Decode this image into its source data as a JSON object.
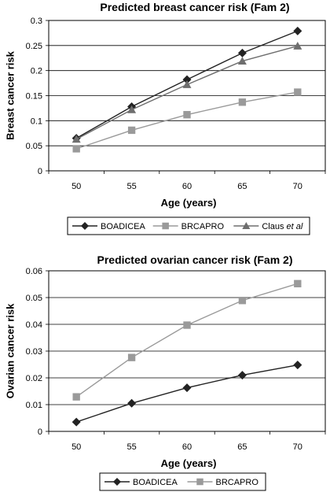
{
  "chart_data": [
    {
      "type": "line",
      "title": "Predicted breast cancer risk (Fam 2)",
      "xlabel": "Age (years)",
      "ylabel": "Breast cancer risk",
      "categories": [
        "50",
        "55",
        "60",
        "65",
        "70"
      ],
      "yticks": [
        "0",
        "0.05",
        "0.1",
        "0.15",
        "0.2",
        "0.25",
        "0.3"
      ],
      "ylim": [
        0,
        0.3
      ],
      "grid": true,
      "legend_position": "bottom",
      "series": [
        {
          "name": "BOADICEA",
          "marker": "diamond",
          "color": "#222222",
          "values": [
            0.065,
            0.128,
            0.182,
            0.235,
            0.279
          ]
        },
        {
          "name": "BRCAPRO",
          "marker": "square",
          "color": "#9a9a9a",
          "values": [
            0.044,
            0.081,
            0.112,
            0.137,
            0.157
          ]
        },
        {
          "name": "Claus",
          "name_suffix": "et al",
          "marker": "triangle",
          "color": "#6e6e6e",
          "values": [
            0.063,
            0.122,
            0.172,
            0.219,
            0.249
          ]
        }
      ]
    },
    {
      "type": "line",
      "title": "Predicted ovarian cancer risk (Fam 2)",
      "xlabel": "Age (years)",
      "ylabel": "Ovarian cancer risk",
      "categories": [
        "50",
        "55",
        "60",
        "65",
        "70"
      ],
      "yticks": [
        "0",
        "0.01",
        "0.02",
        "0.03",
        "0.04",
        "0.05",
        "0.06"
      ],
      "ylim": [
        0,
        0.06
      ],
      "grid": true,
      "legend_position": "bottom",
      "series": [
        {
          "name": "BOADICEA",
          "marker": "diamond",
          "color": "#222222",
          "values": [
            0.0035,
            0.0105,
            0.0163,
            0.021,
            0.0248
          ]
        },
        {
          "name": "BRCAPRO",
          "marker": "square",
          "color": "#9a9a9a",
          "values": [
            0.0129,
            0.0276,
            0.0397,
            0.0489,
            0.0552
          ]
        }
      ]
    }
  ]
}
